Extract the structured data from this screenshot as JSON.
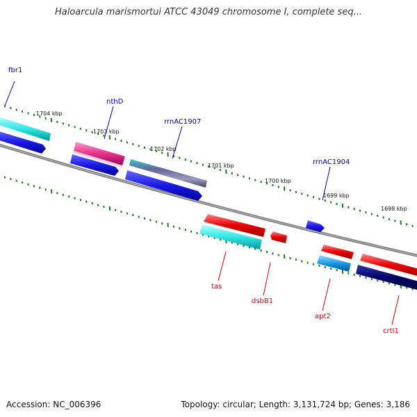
{
  "title": "Haloarcula marismortui ATCC 43049 chromosome I, complete seq...",
  "footer": {
    "accession": "Accession: NC_006396",
    "summary": "Topology: circular; Length: 3,131,724 bp; Genes: 3,186"
  },
  "kbp_ticks": [
    {
      "label": "1704 kbp"
    },
    {
      "label": "1703 kbp"
    },
    {
      "label": "1702 kbp"
    },
    {
      "label": "1701 kbp"
    },
    {
      "label": "1700 kbp"
    },
    {
      "label": "1699 kbp"
    },
    {
      "label": "1698 kbp"
    }
  ],
  "genes_top": [
    {
      "label": "fbr1",
      "color": "#000099"
    },
    {
      "label": "nthD",
      "color": "#000099"
    },
    {
      "label": "rrnAC1907",
      "color": "#000099"
    },
    {
      "label": "rrnAC1904",
      "color": "#000099"
    }
  ],
  "genes_bottom": [
    {
      "label": "tas",
      "color": "#cc0000"
    },
    {
      "label": "dsbB1",
      "color": "#cc0000"
    },
    {
      "label": "apt2",
      "color": "#cc0000"
    },
    {
      "label": "crtI1",
      "color": "#cc0000"
    }
  ],
  "colors": {
    "backbone": "#888888",
    "tick_green": "#1a7a1a",
    "cyan": "#33e6e6",
    "blue": "#1a1ae6",
    "magenta": "#e6338c",
    "red": "#e60000",
    "skyblue": "#1a99e6",
    "navy": "#000066"
  }
}
